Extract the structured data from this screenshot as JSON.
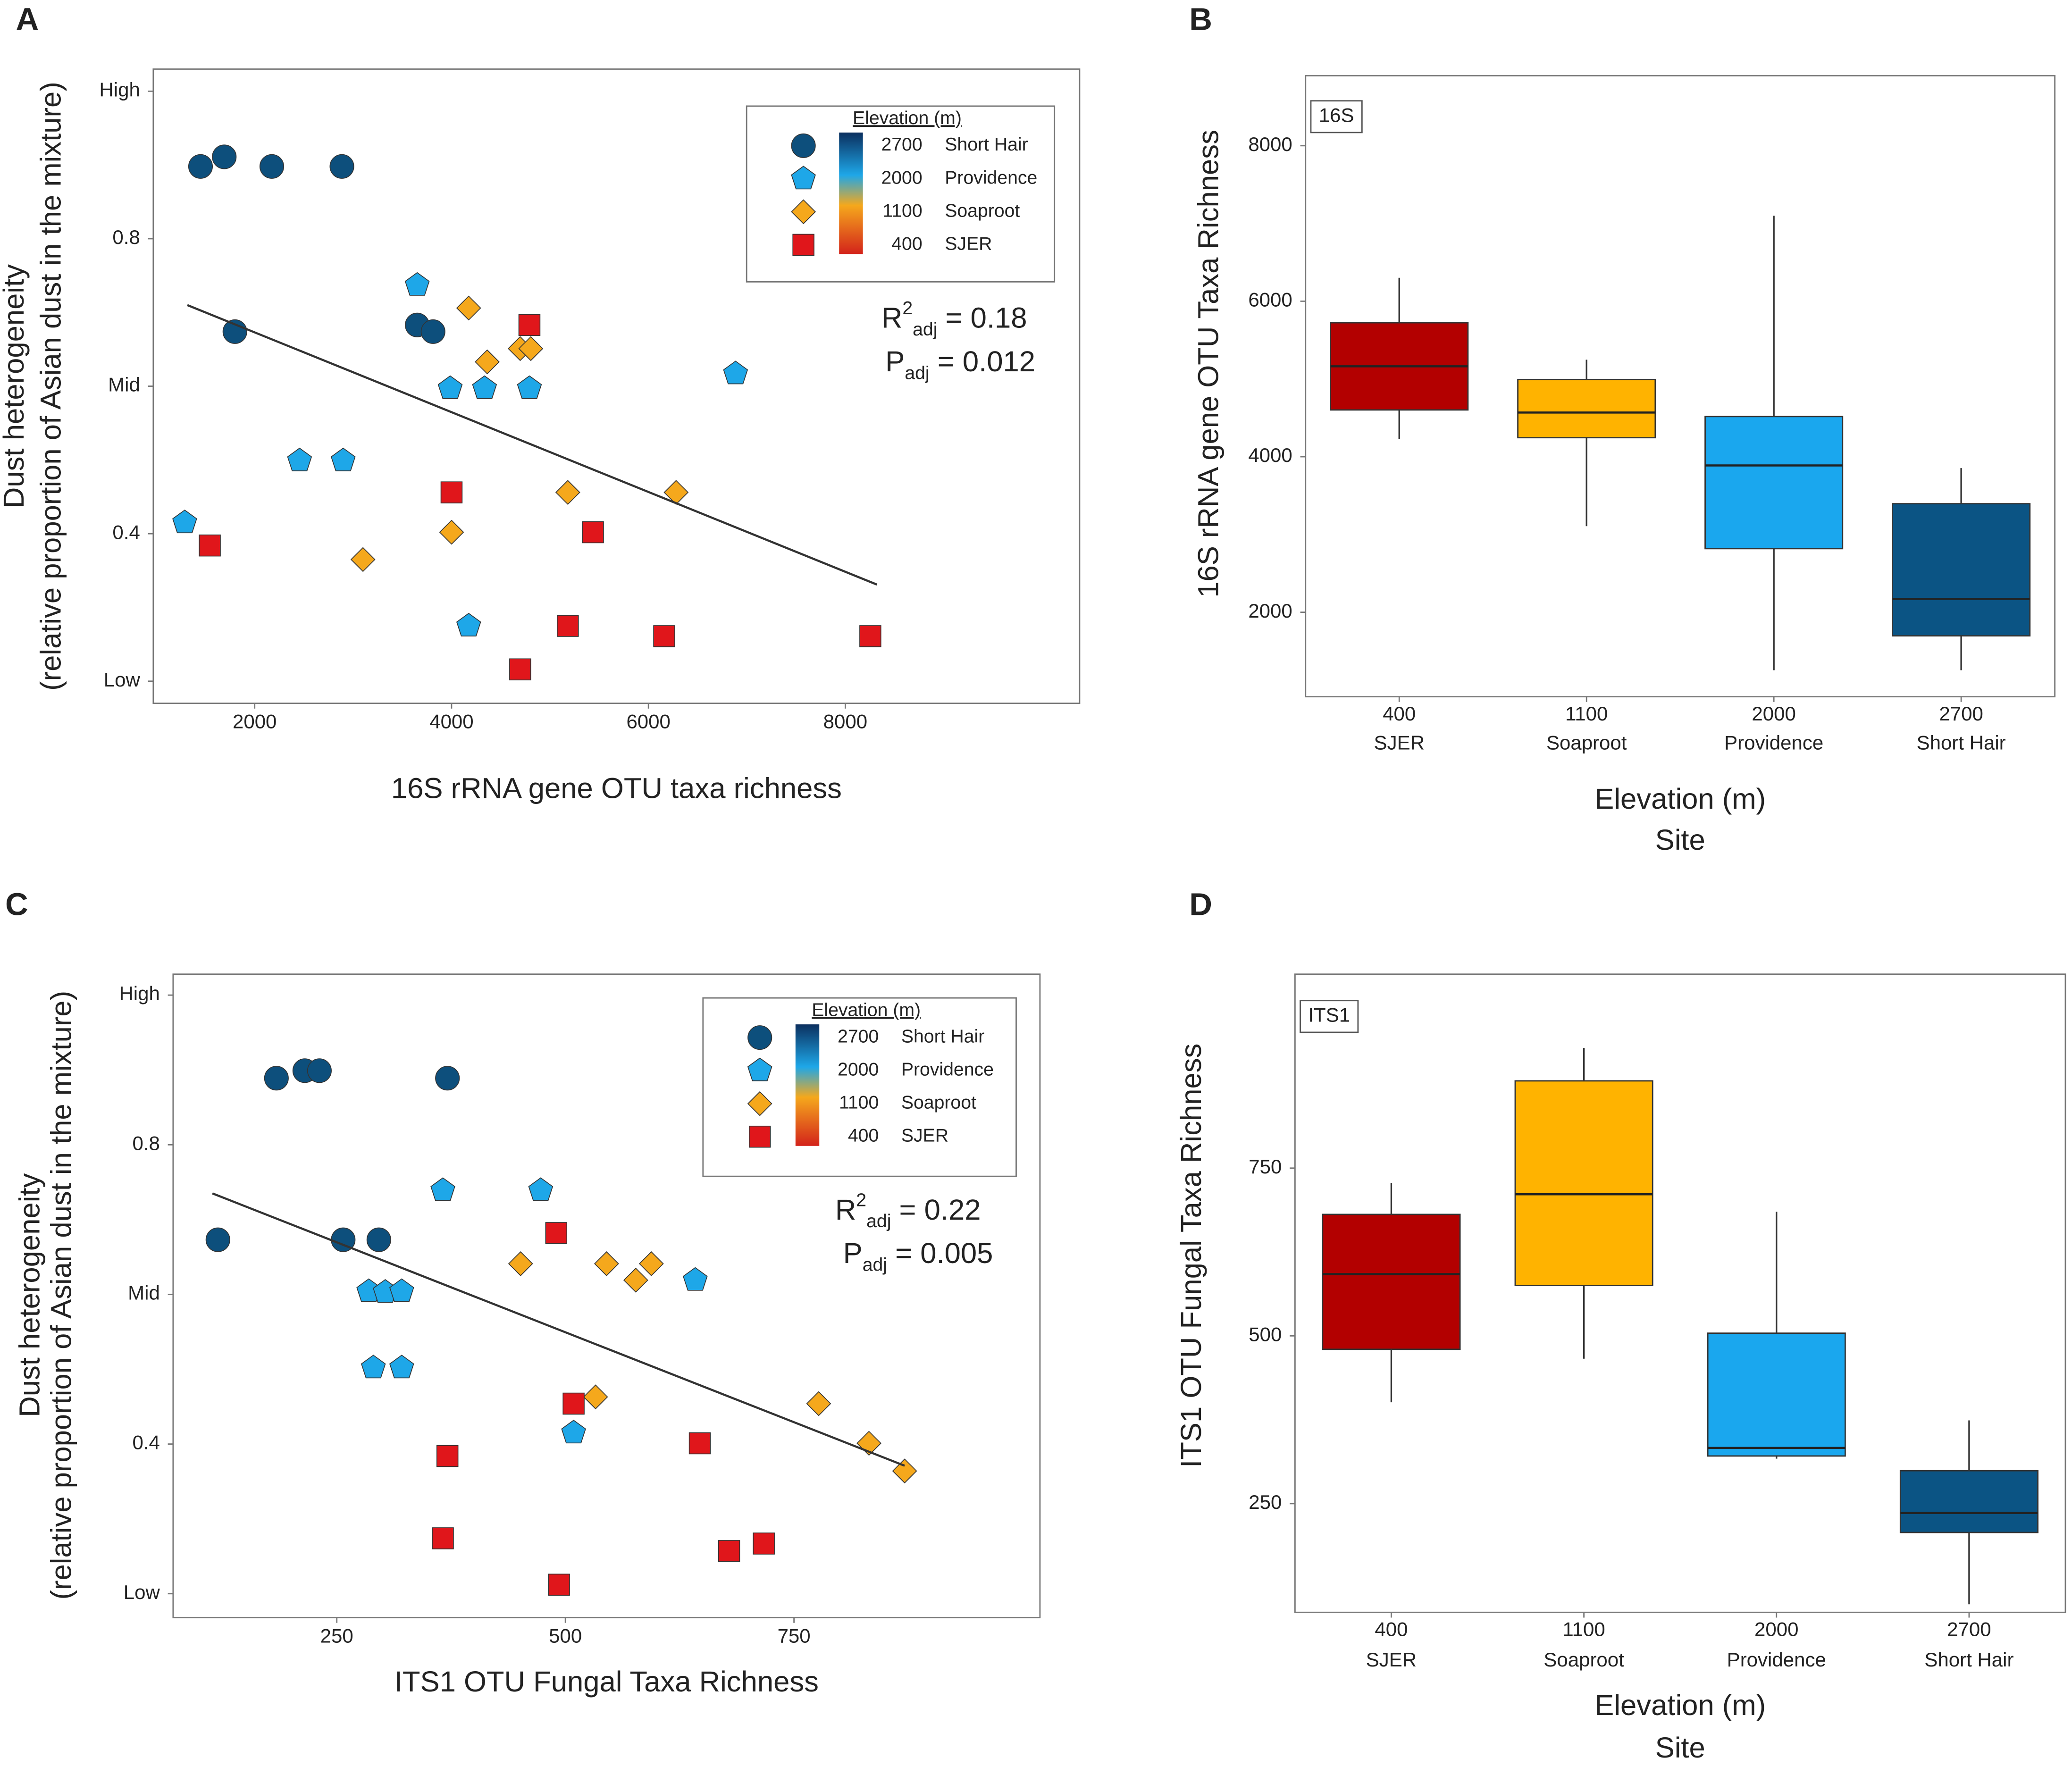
{
  "chart_data": [
    {
      "type": "scatter",
      "panel": "A",
      "ylabel": [
        "Dust heterogeneity",
        "(relative proportion of Asian dust in the mixture)"
      ],
      "xlabel": "16S rRNA gene OTU taxa richness",
      "legend_title": "Elevation (m)",
      "xlim": [
        970,
        10380
      ],
      "xticks": [
        2000,
        4000,
        6000,
        8000
      ],
      "ylim": [
        0.17,
        1.03
      ],
      "yticks": [
        {
          "value": 1.0,
          "label": "High"
        },
        0.8,
        {
          "value": 0.6,
          "label": "Mid"
        },
        0.4,
        {
          "value": 0.2,
          "label": "Low"
        }
      ],
      "series": [
        {
          "name": "Short Hair",
          "elevation": 2700,
          "color": "#0d4f7c",
          "marker": "circle",
          "x": [
            1450,
            1691,
            2174,
            2886,
            1799,
            3651,
            3812
          ],
          "y": [
            0.898,
            0.911,
            0.898,
            0.898,
            0.674,
            0.683,
            0.674
          ]
        },
        {
          "name": "Providence",
          "elevation": 2000,
          "color": "#1ea7e8",
          "marker": "pentagon",
          "x": [
            3651,
            6885,
            3986,
            4335,
            4791,
            2456,
            2899,
            1289,
            4174
          ],
          "y": [
            0.737,
            0.617,
            0.597,
            0.597,
            0.597,
            0.499,
            0.499,
            0.415,
            0.275
          ]
        },
        {
          "name": "Soaproot",
          "elevation": 1100,
          "color": "#f5a81c",
          "marker": "diamond",
          "x": [
            4174,
            4362,
            4697,
            4805,
            5181,
            6281,
            4000,
            3100
          ],
          "y": [
            0.706,
            0.633,
            0.651,
            0.651,
            0.456,
            0.456,
            0.402,
            0.365
          ]
        },
        {
          "name": "SJER",
          "elevation": 400,
          "color": "#e0161b",
          "marker": "square",
          "x": [
            4791,
            4000,
            5436,
            1544,
            5181,
            6160,
            8254,
            4697
          ],
          "y": [
            0.683,
            0.456,
            0.402,
            0.384,
            0.275,
            0.261,
            0.261,
            0.216
          ]
        }
      ],
      "fit_line": {
        "x": [
          1316,
          8321
        ],
        "y": [
          0.71,
          0.331
        ]
      },
      "stats": [
        {
          "symbol": "R",
          "sup": "2",
          "sub": "adj",
          "text": " = 0.18"
        },
        {
          "symbol": "P",
          "sub": "adj",
          "text": " = 0.012"
        }
      ]
    },
    {
      "type": "box",
      "panel": "B",
      "inset_label": "16S",
      "ylabel": "16S rRNA gene OTU Taxa Richness",
      "xlabel": [
        "Elevation (m)",
        "Site"
      ],
      "categories": [
        "400",
        "1100",
        "2000",
        "2700"
      ],
      "sites": [
        "SJER",
        "Soaproot",
        "Providence",
        "Short Hair"
      ],
      "colors": [
        "#b30000",
        "#ffb300",
        "#1aa7ee",
        "#0b5484"
      ],
      "ylim": [
        914,
        8900
      ],
      "yticks": [
        2000,
        4000,
        6000,
        8000
      ],
      "boxes": [
        {
          "low": 4228,
          "q1": 4602,
          "median": 5163,
          "q3": 5723,
          "high": 6301
        },
        {
          "low": 3107,
          "q1": 4245,
          "median": 4568,
          "q3": 4993,
          "high": 5248
        },
        {
          "low": 1255,
          "q1": 2818,
          "median": 3888,
          "q3": 4517,
          "high": 7100
        },
        {
          "low": 1255,
          "q1": 1697,
          "median": 2172,
          "q3": 3396,
          "high": 3854
        }
      ]
    },
    {
      "type": "scatter",
      "panel": "C",
      "ylabel": [
        "Dust heterogeneity",
        "(relative proportion of Asian dust in the mixture)"
      ],
      "xlabel": "ITS1 OTU Fungal Taxa Richness",
      "legend_title": "Elevation (m)",
      "xlim": [
        71,
        1019
      ],
      "xticks": [
        250,
        500,
        750
      ],
      "ylim": [
        0.168,
        1.028
      ],
      "yticks": [
        {
          "value": 1.0,
          "label": "High"
        },
        0.8,
        {
          "value": 0.6,
          "label": "Mid"
        },
        0.4,
        {
          "value": 0.2,
          "label": "Low"
        }
      ],
      "series": [
        {
          "name": "Short Hair",
          "elevation": 2700,
          "color": "#0d4f7c",
          "marker": "circle",
          "x": [
            184,
            215,
            231,
            371,
            120,
            257,
            296
          ],
          "y": [
            0.889,
            0.899,
            0.899,
            0.889,
            0.673,
            0.673,
            0.673
          ]
        },
        {
          "name": "Providence",
          "elevation": 2000,
          "color": "#1ea7e8",
          "marker": "pentagon",
          "x": [
            366,
            473,
            642,
            285,
            303,
            321,
            290,
            321,
            509
          ],
          "y": [
            0.739,
            0.739,
            0.619,
            0.604,
            0.603,
            0.604,
            0.502,
            0.502,
            0.415
          ]
        },
        {
          "name": "Soaproot",
          "elevation": 1100,
          "color": "#f5a81c",
          "marker": "diamond",
          "x": [
            451,
            545,
            594,
            577,
            533,
            777,
            832,
            871
          ],
          "y": [
            0.641,
            0.641,
            0.641,
            0.619,
            0.463,
            0.454,
            0.401,
            0.364
          ]
        },
        {
          "name": "SJER",
          "elevation": 400,
          "color": "#e0161b",
          "marker": "square",
          "x": [
            490,
            509,
            647,
            371,
            366,
            717,
            679,
            493
          ],
          "y": [
            0.682,
            0.454,
            0.401,
            0.384,
            0.274,
            0.267,
            0.257,
            0.212
          ]
        }
      ],
      "fit_line": {
        "x": [
          114,
          871
        ],
        "y": [
          0.735,
          0.371
        ]
      },
      "stats": [
        {
          "symbol": "R",
          "sup": "2",
          "sub": "adj",
          "text": " = 0.22"
        },
        {
          "symbol": "P",
          "sub": "adj",
          "text": " = 0.005"
        }
      ]
    },
    {
      "type": "box",
      "panel": "D",
      "inset_label": "ITS1",
      "ylabel": "ITS1 OTU Fungal Taxa Richness",
      "xlabel": [
        "Elevation (m)",
        "Site"
      ],
      "categories": [
        "400",
        "1100",
        "2000",
        "2700"
      ],
      "sites": [
        "SJER",
        "Soaproot",
        "Providence",
        "Short Hair"
      ],
      "colors": [
        "#b30000",
        "#ffb300",
        "#1aa7ee",
        "#0b5484"
      ],
      "ylim": [
        88,
        1039
      ],
      "yticks": [
        250,
        500,
        750
      ],
      "boxes": [
        {
          "low": 401,
          "q1": 480,
          "median": 592,
          "q3": 681,
          "high": 728
        },
        {
          "low": 466,
          "q1": 575,
          "median": 711,
          "q3": 880,
          "high": 929
        },
        {
          "low": 317,
          "q1": 321,
          "median": 333,
          "q3": 504,
          "high": 685
        },
        {
          "low": 100,
          "q1": 207,
          "median": 236,
          "q3": 299,
          "high": 374
        }
      ]
    }
  ]
}
